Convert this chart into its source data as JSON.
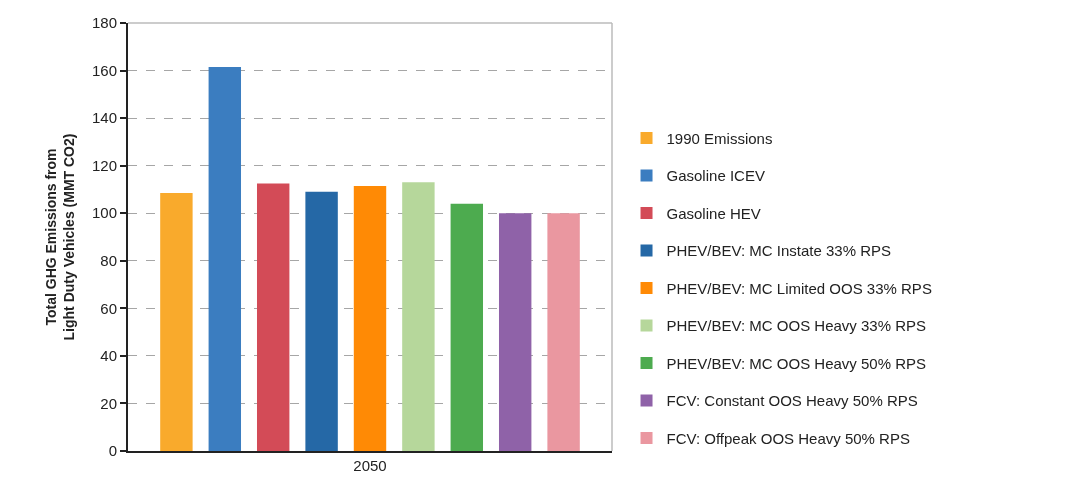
{
  "chart_data": {
    "type": "bar",
    "ylabel": "Total GHG Emissions from\nLight Duty Vehicles (MMT CO2)",
    "categories": [
      "2050"
    ],
    "series": [
      {
        "name": "1990 Emissions",
        "color": "#f9aa2c",
        "values": [
          108.5
        ]
      },
      {
        "name": "Gasoline ICEV",
        "color": "#3b7dc0",
        "values": [
          161.5
        ]
      },
      {
        "name": "Gasoline HEV",
        "color": "#d34b57",
        "values": [
          112.5
        ]
      },
      {
        "name": "PHEV/BEV: MC Instate 33% RPS",
        "color": "#2568a6",
        "values": [
          109
        ]
      },
      {
        "name": "PHEV/BEV: MC Limited OOS 33% RPS",
        "color": "#ff8a05",
        "values": [
          111.5
        ]
      },
      {
        "name": "PHEV/BEV: MC OOS Heavy 33% RPS",
        "color": "#b6d79b",
        "values": [
          113
        ]
      },
      {
        "name": "PHEV/BEV: MC OOS Heavy 50% RPS",
        "color": "#4dab4f",
        "values": [
          104
        ]
      },
      {
        "name": "FCV: Constant OOS Heavy 50% RPS",
        "color": "#8f62a8",
        "values": [
          100
        ]
      },
      {
        "name": "FCV: Offpeak OOS Heavy 50% RPS",
        "color": "#ea97a0",
        "values": [
          100
        ]
      }
    ],
    "ylim": [
      0,
      180
    ],
    "yticks": [
      0,
      20,
      40,
      60,
      80,
      100,
      120,
      140,
      160,
      180
    ],
    "grid": "y",
    "legend": "right"
  }
}
